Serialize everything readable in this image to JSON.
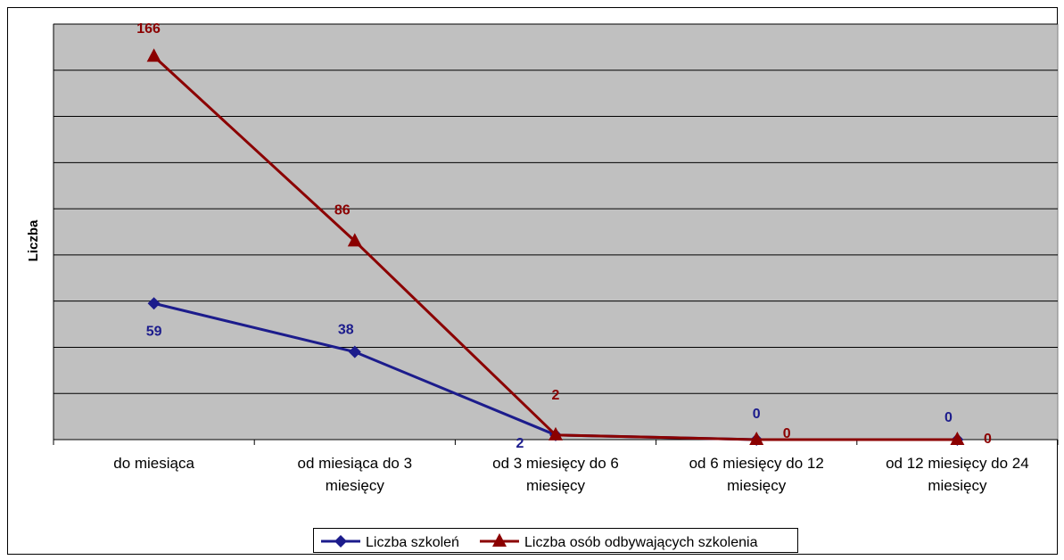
{
  "chart_data": {
    "type": "line",
    "title": "",
    "xlabel": "",
    "ylabel": "Liczba",
    "ylim": [
      0,
      180
    ],
    "grid": true,
    "legend_position": "bottom",
    "categories": [
      [
        "do miesiąca"
      ],
      [
        "od miesiąca do 3",
        "miesięcy"
      ],
      [
        "od 3 miesięcy do 6",
        "miesięcy"
      ],
      [
        "od 6 miesięcy do 12",
        "miesięcy"
      ],
      [
        "od 12 miesięcy do 24",
        "miesięcy"
      ]
    ],
    "series": [
      {
        "name": "Liczba szkoleń",
        "values": [
          59,
          38,
          2,
          0,
          0
        ],
        "color": "#1c1c8c",
        "marker": "diamond"
      },
      {
        "name": "Liczba osób odbywających szkolenia",
        "values": [
          166,
          86,
          2,
          0,
          0
        ],
        "color": "#8b0000",
        "marker": "triangle"
      }
    ],
    "colors": {
      "plot_background": "#c0c0c0",
      "gridline": "#000000"
    }
  }
}
